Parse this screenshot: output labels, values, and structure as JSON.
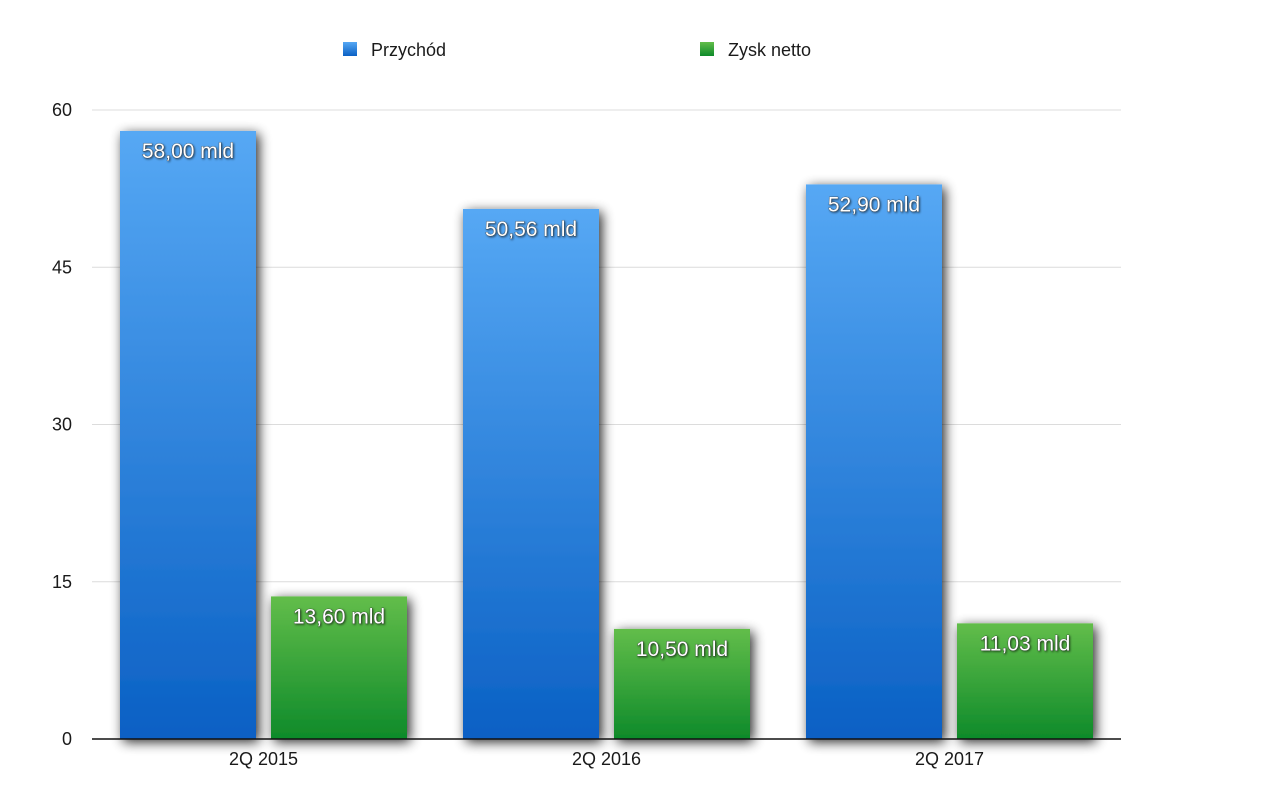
{
  "chart_data": {
    "type": "bar",
    "categories": [
      "2Q 2015",
      "2Q 2016",
      "2Q 2017"
    ],
    "series": [
      {
        "name": "Przychód",
        "values": [
          58.0,
          50.56,
          52.9
        ],
        "labels": [
          "58,00 mld",
          "50,56 mld",
          "52,90 mld"
        ],
        "color_top": "#56a8f4",
        "color_bottom": "#0a60c4"
      },
      {
        "name": "Zysk netto",
        "values": [
          13.6,
          10.5,
          11.03
        ],
        "labels": [
          "13,60 mld",
          "10,50 mld",
          "11,03 mld"
        ],
        "color_top": "#62bd4a",
        "color_bottom": "#0e8a2a"
      }
    ],
    "yticks": [
      "0",
      "15",
      "30",
      "45",
      "60"
    ],
    "ylim": [
      0,
      60
    ],
    "grid": true,
    "legend_position": "top-center",
    "title": "",
    "xlabel": "",
    "ylabel": ""
  }
}
